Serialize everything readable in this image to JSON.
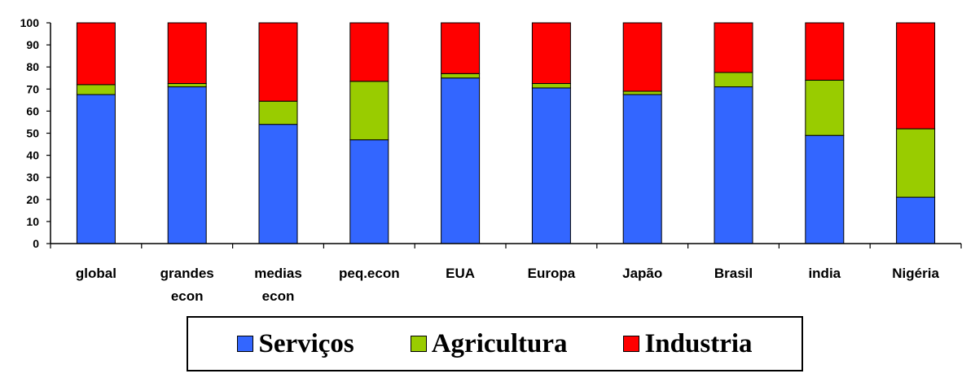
{
  "chart_data": {
    "type": "bar",
    "stacked": true,
    "categories": [
      [
        "global"
      ],
      [
        "grandes",
        "econ"
      ],
      [
        "medias",
        "econ"
      ],
      [
        "peq.econ"
      ],
      [
        "EUA"
      ],
      [
        "Europa"
      ],
      [
        "Japão"
      ],
      [
        "Brasil"
      ],
      [
        "india"
      ],
      [
        "Nigéria"
      ]
    ],
    "series": [
      {
        "name": "Serviços",
        "color": "#3366FF",
        "values": [
          67.5,
          71,
          54,
          47,
          75,
          70.5,
          67.5,
          71,
          49,
          21
        ]
      },
      {
        "name": "Agricultura",
        "color": "#99CC00",
        "values": [
          4.5,
          1.5,
          10.5,
          26.5,
          2,
          2,
          1.5,
          6.5,
          25,
          31
        ]
      },
      {
        "name": "Industria",
        "color": "#FF0000",
        "values": [
          28,
          27.5,
          35.5,
          26.5,
          23,
          27.5,
          31,
          22.5,
          26,
          48
        ]
      }
    ],
    "yticks": [
      "0",
      "10",
      "20",
      "30",
      "40",
      "50",
      "60",
      "70",
      "80",
      "90",
      "100"
    ],
    "ylim": [
      0,
      100
    ],
    "title": "",
    "xlabel": "",
    "ylabel": "",
    "grid": false,
    "legend_position": "bottom"
  }
}
